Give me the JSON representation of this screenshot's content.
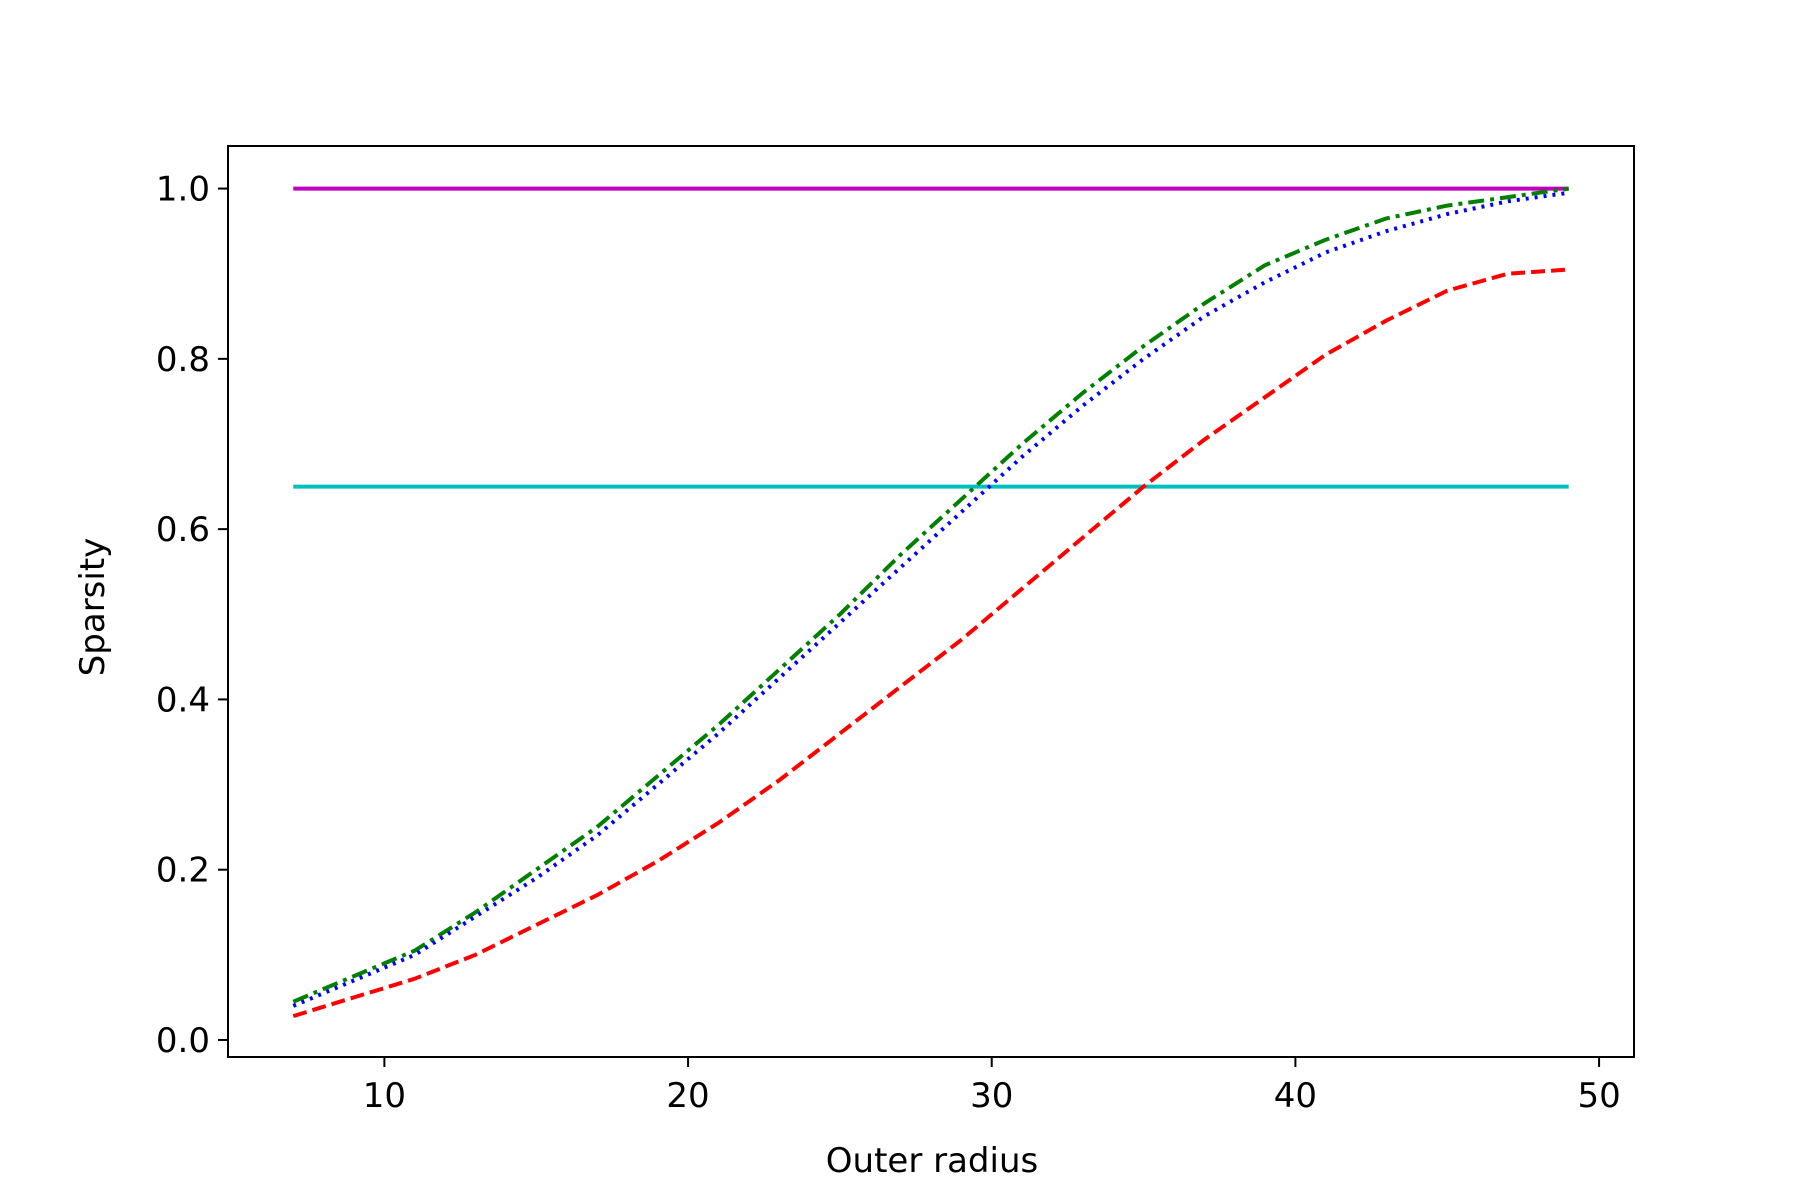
{
  "chart_data": {
    "type": "line",
    "title": "",
    "xlabel": "Outer radius",
    "ylabel": "Sparsity",
    "xlim": [
      4.85,
      51.15
    ],
    "ylim": [
      -0.02,
      1.05
    ],
    "xticks": [
      10,
      20,
      30,
      40,
      50
    ],
    "yticks": [
      0.0,
      0.2,
      0.4,
      0.6,
      0.8,
      1.0
    ],
    "ytick_labels": [
      "0.0",
      "0.2",
      "0.4",
      "0.6",
      "0.8",
      "1.0"
    ],
    "grid": false,
    "series": [
      {
        "color": "#bf00bf",
        "style": "solid",
        "x": [
          7,
          49
        ],
        "y": [
          1.0,
          1.0
        ]
      },
      {
        "color": "#00bfbf",
        "style": "solid",
        "x": [
          7,
          49
        ],
        "y": [
          0.65,
          0.65
        ]
      },
      {
        "color": "#008000",
        "style": "dashdot",
        "x": [
          7,
          9,
          11,
          13,
          15,
          17,
          19,
          21,
          23,
          25,
          27,
          29,
          31,
          33,
          35,
          37,
          39,
          41,
          43,
          45,
          47,
          49
        ],
        "y": [
          0.045,
          0.075,
          0.105,
          0.15,
          0.2,
          0.25,
          0.31,
          0.37,
          0.435,
          0.5,
          0.57,
          0.635,
          0.7,
          0.76,
          0.815,
          0.865,
          0.91,
          0.94,
          0.965,
          0.98,
          0.99,
          1.0
        ]
      },
      {
        "color": "#0000ff",
        "style": "dotted",
        "x": [
          7,
          9,
          11,
          13,
          15,
          17,
          19,
          21,
          23,
          25,
          27,
          29,
          31,
          33,
          35,
          37,
          39,
          41,
          43,
          45,
          47,
          49
        ],
        "y": [
          0.04,
          0.07,
          0.1,
          0.145,
          0.19,
          0.24,
          0.3,
          0.36,
          0.425,
          0.49,
          0.555,
          0.62,
          0.685,
          0.745,
          0.8,
          0.85,
          0.89,
          0.925,
          0.95,
          0.97,
          0.985,
          0.995
        ]
      },
      {
        "color": "#ff0000",
        "style": "dashed",
        "x": [
          7,
          9,
          11,
          13,
          15,
          17,
          19,
          21,
          23,
          25,
          27,
          29,
          31,
          33,
          35,
          37,
          39,
          41,
          43,
          45,
          47,
          49
        ],
        "y": [
          0.028,
          0.05,
          0.072,
          0.1,
          0.135,
          0.17,
          0.21,
          0.255,
          0.305,
          0.36,
          0.415,
          0.47,
          0.53,
          0.59,
          0.65,
          0.705,
          0.755,
          0.805,
          0.845,
          0.88,
          0.9,
          0.905
        ]
      }
    ]
  }
}
